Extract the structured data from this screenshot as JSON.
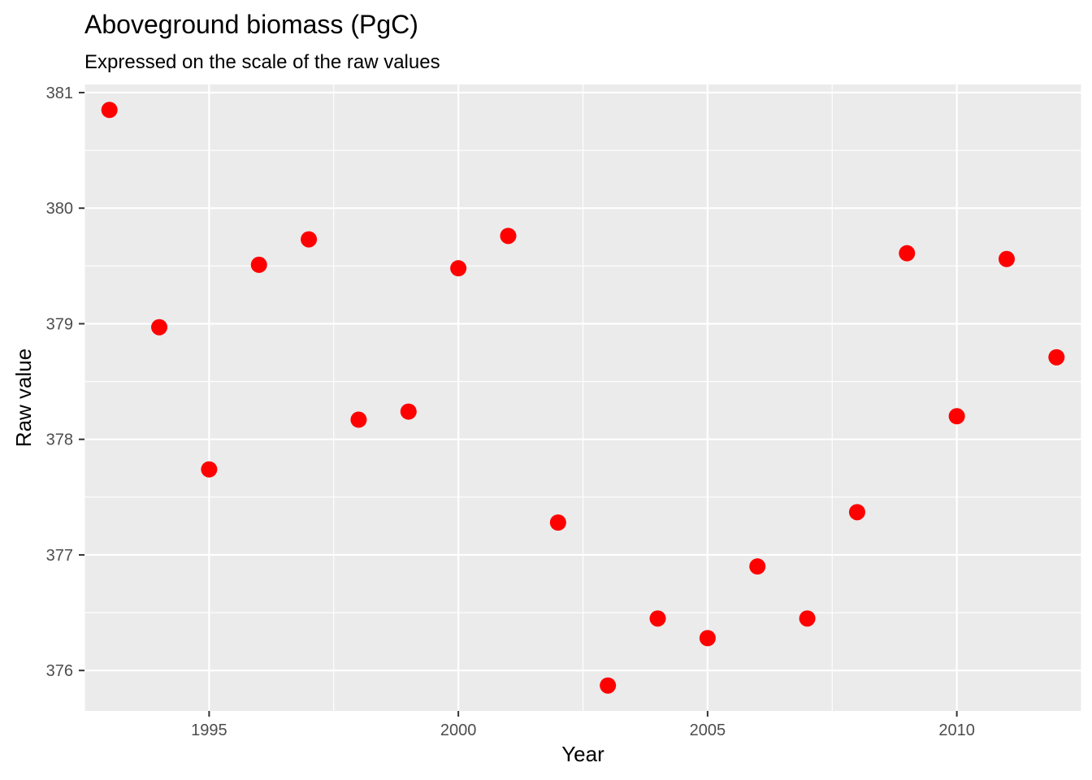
{
  "chart_data": {
    "type": "scatter",
    "title": "Aboveground biomass (PgC)",
    "subtitle": "Expressed on the scale of the raw values",
    "xlabel": "Year",
    "ylabel": "Raw value",
    "xlim": [
      1992.5,
      2012.5
    ],
    "ylim": [
      375.65,
      381.07
    ],
    "x_ticks": [
      1995,
      2000,
      2005,
      2010
    ],
    "y_ticks": [
      376,
      377,
      378,
      379,
      380,
      381
    ],
    "grid": true,
    "panel_background": "#ebebeb",
    "point_color": "#ff0000",
    "x": [
      1993,
      1994,
      1995,
      1996,
      1997,
      1998,
      1999,
      2000,
      2001,
      2002,
      2003,
      2004,
      2005,
      2006,
      2007,
      2008,
      2009,
      2010,
      2011,
      2012
    ],
    "y": [
      380.85,
      378.97,
      377.74,
      379.51,
      379.73,
      378.17,
      378.24,
      379.48,
      379.76,
      377.28,
      375.87,
      376.45,
      376.28,
      376.9,
      376.45,
      377.37,
      379.61,
      378.2,
      379.56,
      378.71
    ]
  }
}
